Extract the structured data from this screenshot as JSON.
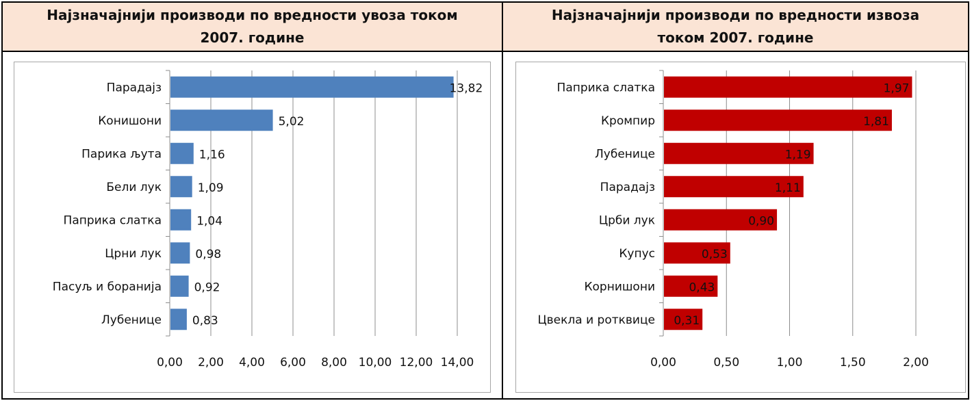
{
  "chart_data": [
    {
      "type": "bar",
      "orientation": "horizontal",
      "title": "Најзначајнији производи по вредности увоза током 2007. године",
      "categories": [
        "Парадајз",
        "Конишони",
        "Парика љута",
        "Бели лук",
        "Паприка слатка",
        "Црни лук",
        "Пасуљ и боранија",
        "Лубенице"
      ],
      "values": [
        13.82,
        5.02,
        1.16,
        1.09,
        1.04,
        0.98,
        0.92,
        0.83
      ],
      "value_labels": [
        "13,82",
        "5,02",
        "1,16",
        "1,09",
        "1,04",
        "0,98",
        "0,92",
        "0,83"
      ],
      "xlim": [
        0,
        14
      ],
      "x_ticks": [
        "0,00",
        "2,00",
        "4,00",
        "6,00",
        "8,00",
        "10,00",
        "12,00",
        "14,00"
      ],
      "bar_color": "#4f81bd",
      "label_position": "outside-end",
      "grid": true,
      "xlabel": "",
      "ylabel": ""
    },
    {
      "type": "bar",
      "orientation": "horizontal",
      "title": "Најзначајнији производи по вредности извоза током 2007. године",
      "categories": [
        "Паприка слатка",
        "Кромпир",
        "Лубенице",
        "Парадајз",
        "Црби лук",
        "Купус",
        "Корнишони",
        "Цвекла и ротквице"
      ],
      "values": [
        1.97,
        1.81,
        1.19,
        1.11,
        0.9,
        0.53,
        0.43,
        0.31
      ],
      "value_labels": [
        "1,97",
        "1,81",
        "1,19",
        "1,11",
        "0,90",
        "0,53",
        "0,43",
        "0,31"
      ],
      "xlim": [
        0,
        2
      ],
      "x_ticks": [
        "0,00",
        "0,50",
        "1,00",
        "1,50",
        "2,00"
      ],
      "bar_color": "#c00000",
      "label_position": "inside-end",
      "grid": true,
      "xlabel": "",
      "ylabel": ""
    }
  ],
  "headers": {
    "left_line1": "Најзначајнији производи по вредности увоза током",
    "left_line2": "2007. године",
    "right_line1": "Најзначајнији производи по вредности извоза",
    "right_line2": "током 2007. године"
  }
}
